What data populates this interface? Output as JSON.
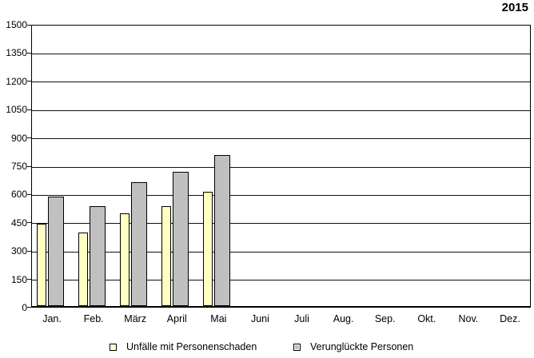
{
  "title": "2015",
  "colors": {
    "series1_fill": "#FFFFC2",
    "series2_fill": "#C0C0C0",
    "bar_border": "#000000",
    "axis": "#000000",
    "background": "#FFFFFF"
  },
  "legend": {
    "items": [
      {
        "label": "Unfälle mit Personenschaden",
        "color": "#FFFFC2"
      },
      {
        "label": "Verunglückte Personen",
        "color": "#C0C0C0"
      }
    ]
  },
  "chart_data": {
    "type": "bar",
    "title": "2015",
    "categories": [
      "Jan.",
      "Feb.",
      "März",
      "April",
      "Mai",
      "Juni",
      "Juli",
      "Aug.",
      "Sep.",
      "Okt.",
      "Nov.",
      "Dez."
    ],
    "series": [
      {
        "name": "Unfälle mit Personenschaden",
        "color": "#FFFFC2",
        "values": [
          435,
          390,
          490,
          530,
          605,
          null,
          null,
          null,
          null,
          null,
          null,
          null
        ]
      },
      {
        "name": "Verunglückte Personen",
        "color": "#C0C0C0",
        "values": [
          580,
          530,
          655,
          710,
          800,
          null,
          null,
          null,
          null,
          null,
          null,
          null
        ]
      }
    ],
    "xlabel": "",
    "ylabel": "",
    "ylim": [
      0,
      1500
    ],
    "ytick_interval": 150,
    "yticks": [
      0,
      150,
      300,
      450,
      600,
      750,
      900,
      1050,
      1200,
      1350,
      1500
    ],
    "grid": "horizontal",
    "legend_position": "bottom"
  }
}
